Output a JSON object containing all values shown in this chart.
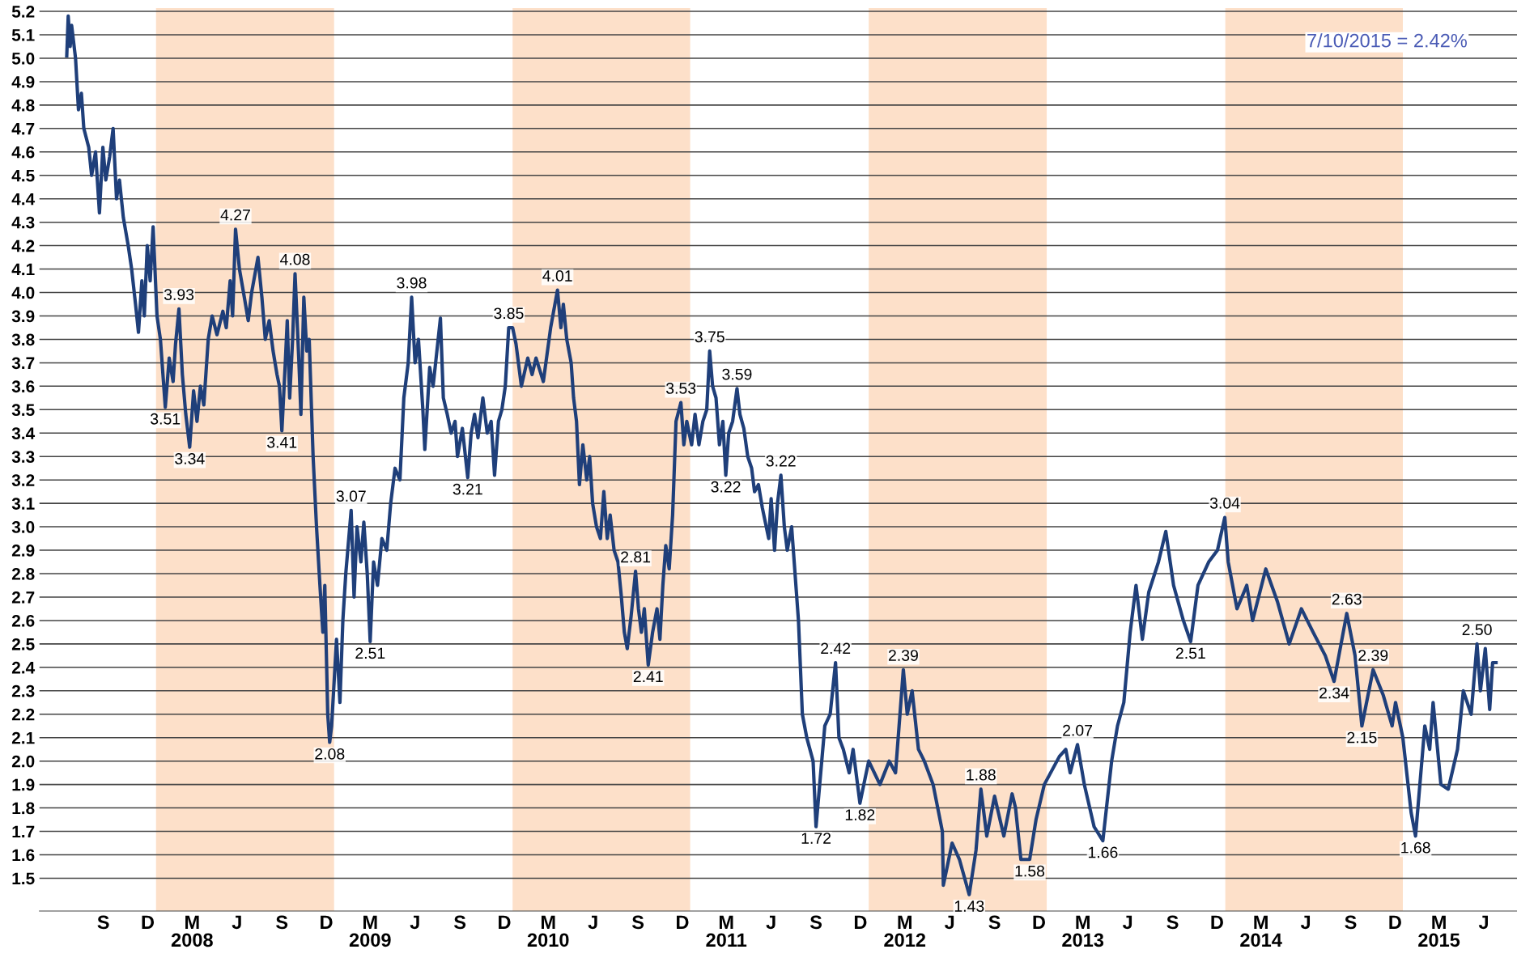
{
  "chart_data": {
    "type": "line",
    "x": [
      "2007-07-02",
      "2007-07-05",
      "2007-07-09",
      "2007-07-12",
      "2007-07-20",
      "2007-07-26",
      "2007-08-01",
      "2007-08-06",
      "2007-08-16",
      "2007-08-22",
      "2007-08-30",
      "2007-09-07",
      "2007-09-14",
      "2007-09-20",
      "2007-09-28",
      "2007-10-05",
      "2007-10-12",
      "2007-10-18",
      "2007-10-26",
      "2007-11-05",
      "2007-11-12",
      "2007-11-20",
      "2007-11-26",
      "2007-12-03",
      "2007-12-08",
      "2007-12-14",
      "2007-12-20",
      "2007-12-26",
      "2008-01-03",
      "2008-01-10",
      "2008-01-20",
      "2008-01-28",
      "2008-02-05",
      "2008-02-10",
      "2008-02-17",
      "2008-02-24",
      "2008-03-02",
      "2008-03-10",
      "2008-03-18",
      "2008-03-25",
      "2008-04-01",
      "2008-04-08",
      "2008-04-17",
      "2008-04-25",
      "2008-05-05",
      "2008-05-17",
      "2008-05-24",
      "2008-06-01",
      "2008-06-06",
      "2008-06-12",
      "2008-06-20",
      "2008-06-30",
      "2008-07-08",
      "2008-07-15",
      "2008-07-28",
      "2008-08-05",
      "2008-08-12",
      "2008-08-20",
      "2008-08-28",
      "2008-09-05",
      "2008-09-10",
      "2008-09-15",
      "2008-09-22",
      "2008-09-26",
      "2008-10-01",
      "2008-10-07",
      "2008-10-12",
      "2008-10-20",
      "2008-10-24",
      "2008-10-30",
      "2008-11-05",
      "2008-11-10",
      "2008-11-18",
      "2008-11-25",
      "2008-12-02",
      "2008-12-08",
      "2008-12-12",
      "2008-12-18",
      "2008-12-22",
      "2008-12-26",
      "2009-01-05",
      "2009-01-12",
      "2009-01-18",
      "2009-01-24",
      "2009-02-04",
      "2009-02-10",
      "2009-02-16",
      "2009-02-24",
      "2009-03-02",
      "2009-03-09",
      "2009-03-15",
      "2009-03-22",
      "2009-03-30",
      "2009-04-08",
      "2009-04-18",
      "2009-04-26",
      "2009-05-05",
      "2009-05-15",
      "2009-05-23",
      "2009-06-01",
      "2009-06-08",
      "2009-06-15",
      "2009-06-22",
      "2009-07-01",
      "2009-07-05",
      "2009-07-15",
      "2009-07-22",
      "2009-08-06",
      "2009-08-12",
      "2009-08-20",
      "2009-08-28",
      "2009-09-05",
      "2009-09-10",
      "2009-09-20",
      "2009-10-01",
      "2009-10-08",
      "2009-10-15",
      "2009-10-22",
      "2009-11-01",
      "2009-11-10",
      "2009-11-18",
      "2009-11-25",
      "2009-12-03",
      "2009-12-10",
      "2009-12-17",
      "2009-12-24",
      "2010-01-01",
      "2010-01-08",
      "2010-01-19",
      "2010-02-01",
      "2010-02-10",
      "2010-02-18",
      "2010-03-05",
      "2010-03-20",
      "2010-04-03",
      "2010-04-10",
      "2010-04-15",
      "2010-04-22",
      "2010-05-01",
      "2010-05-06",
      "2010-05-12",
      "2010-05-18",
      "2010-05-25",
      "2010-06-02",
      "2010-06-08",
      "2010-06-14",
      "2010-06-22",
      "2010-06-30",
      "2010-07-07",
      "2010-07-14",
      "2010-07-20",
      "2010-07-28",
      "2010-08-05",
      "2010-08-12",
      "2010-08-18",
      "2010-08-24",
      "2010-09-01",
      "2010-09-10",
      "2010-09-16",
      "2010-09-22",
      "2010-09-28",
      "2010-10-06",
      "2010-10-15",
      "2010-10-24",
      "2010-10-30",
      "2010-11-05",
      "2010-11-11",
      "2010-11-18",
      "2010-11-25",
      "2010-12-02",
      "2010-12-12",
      "2010-12-18",
      "2010-12-24",
      "2011-01-03",
      "2011-01-10",
      "2011-01-18",
      "2011-01-26",
      "2011-02-03",
      "2011-02-09",
      "2011-02-15",
      "2011-02-22",
      "2011-03-01",
      "2011-03-08",
      "2011-03-14",
      "2011-03-20",
      "2011-03-28",
      "2011-04-06",
      "2011-04-12",
      "2011-04-20",
      "2011-04-28",
      "2011-05-06",
      "2011-05-12",
      "2011-05-20",
      "2011-05-28",
      "2011-06-05",
      "2011-06-10",
      "2011-06-15",
      "2011-06-22",
      "2011-06-28",
      "2011-07-05",
      "2011-07-12",
      "2011-07-18",
      "2011-07-27",
      "2011-08-10",
      "2011-08-18",
      "2011-08-27",
      "2011-09-09",
      "2011-09-15",
      "2011-10-03",
      "2011-10-14",
      "2011-10-25",
      "2011-11-01",
      "2011-11-10",
      "2011-11-22",
      "2011-11-30",
      "2011-12-14",
      "2012-01-01",
      "2012-01-24",
      "2012-02-12",
      "2012-02-25",
      "2012-03-12",
      "2012-03-20",
      "2012-03-30",
      "2012-04-12",
      "2012-04-24",
      "2012-05-12",
      "2012-05-31",
      "2012-06-02",
      "2012-06-20",
      "2012-07-05",
      "2012-07-25",
      "2012-08-08",
      "2012-08-18",
      "2012-08-30",
      "2012-09-15",
      "2012-10-04",
      "2012-10-21",
      "2012-10-28",
      "2012-11-08",
      "2012-11-26",
      "2012-12-09",
      "2012-12-26",
      "2013-01-26",
      "2013-02-08",
      "2013-02-17",
      "2013-03-04",
      "2013-03-18",
      "2013-04-07",
      "2013-04-25",
      "2013-05-13",
      "2013-05-25",
      "2013-06-07",
      "2013-06-20",
      "2013-07-02",
      "2013-07-15",
      "2013-07-28",
      "2013-08-17",
      "2013-09-01",
      "2013-09-17",
      "2013-10-07",
      "2013-10-22",
      "2013-11-06",
      "2013-11-28",
      "2013-12-16",
      "2013-12-31",
      "2014-01-07",
      "2014-01-25",
      "2014-02-14",
      "2014-02-26",
      "2014-03-25",
      "2014-04-18",
      "2014-05-12",
      "2014-06-06",
      "2014-06-30",
      "2014-07-25",
      "2014-08-12",
      "2014-09-07",
      "2014-09-24",
      "2014-10-08",
      "2014-10-31",
      "2014-11-21",
      "2014-12-09",
      "2014-12-16",
      "2014-12-31",
      "2015-01-17",
      "2015-01-26",
      "2015-02-14",
      "2015-02-24",
      "2015-03-03",
      "2015-03-19",
      "2015-04-03",
      "2015-04-22",
      "2015-05-04",
      "2015-05-20",
      "2015-06-01",
      "2015-06-08",
      "2015-06-18",
      "2015-06-27",
      "2015-07-03",
      "2015-07-10"
    ],
    "series": [
      {
        "color": "#1f3f7a",
        "values": [
          5.01,
          5.18,
          5.05,
          5.14,
          5.0,
          4.78,
          4.85,
          4.7,
          4.62,
          4.5,
          4.6,
          4.34,
          4.62,
          4.48,
          4.58,
          4.7,
          4.4,
          4.48,
          4.32,
          4.2,
          4.1,
          3.95,
          3.83,
          4.05,
          3.9,
          4.2,
          4.05,
          4.28,
          3.9,
          3.8,
          3.51,
          3.72,
          3.62,
          3.78,
          3.93,
          3.65,
          3.48,
          3.34,
          3.58,
          3.45,
          3.6,
          3.52,
          3.8,
          3.9,
          3.82,
          3.92,
          3.85,
          4.05,
          3.9,
          4.27,
          4.1,
          3.98,
          3.88,
          4.0,
          4.15,
          3.98,
          3.8,
          3.88,
          3.75,
          3.65,
          3.6,
          3.41,
          3.7,
          3.88,
          3.55,
          3.8,
          4.08,
          3.7,
          3.48,
          3.98,
          3.75,
          3.8,
          3.3,
          3.0,
          2.75,
          2.55,
          2.75,
          2.2,
          2.08,
          2.15,
          2.52,
          2.25,
          2.6,
          2.8,
          3.07,
          2.7,
          3.0,
          2.85,
          3.02,
          2.8,
          2.51,
          2.85,
          2.75,
          2.95,
          2.9,
          3.1,
          3.25,
          3.2,
          3.55,
          3.7,
          3.98,
          3.7,
          3.8,
          3.5,
          3.33,
          3.68,
          3.6,
          3.89,
          3.55,
          3.48,
          3.4,
          3.45,
          3.3,
          3.42,
          3.21,
          3.4,
          3.48,
          3.38,
          3.55,
          3.4,
          3.45,
          3.22,
          3.45,
          3.5,
          3.6,
          3.85,
          3.85,
          3.78,
          3.6,
          3.72,
          3.65,
          3.72,
          3.62,
          3.85,
          4.01,
          3.85,
          3.95,
          3.8,
          3.7,
          3.55,
          3.45,
          3.18,
          3.35,
          3.2,
          3.3,
          3.1,
          3.0,
          2.95,
          3.15,
          2.95,
          3.05,
          2.9,
          2.85,
          2.7,
          2.55,
          2.48,
          2.62,
          2.81,
          2.65,
          2.55,
          2.65,
          2.41,
          2.55,
          2.65,
          2.52,
          2.75,
          2.92,
          2.82,
          3.05,
          3.45,
          3.53,
          3.35,
          3.45,
          3.35,
          3.48,
          3.35,
          3.45,
          3.5,
          3.75,
          3.6,
          3.55,
          3.35,
          3.45,
          3.22,
          3.4,
          3.45,
          3.59,
          3.48,
          3.42,
          3.3,
          3.25,
          3.15,
          3.18,
          3.08,
          3.0,
          2.95,
          3.12,
          2.9,
          3.1,
          3.22,
          3.0,
          2.9,
          3.0,
          2.6,
          2.2,
          2.1,
          2.0,
          1.72,
          2.15,
          2.2,
          2.42,
          2.1,
          2.05,
          1.95,
          2.05,
          1.82,
          2.0,
          1.9,
          2.0,
          1.95,
          2.39,
          2.2,
          2.3,
          2.05,
          2.0,
          1.9,
          1.7,
          1.47,
          1.65,
          1.58,
          1.43,
          1.62,
          1.88,
          1.68,
          1.85,
          1.68,
          1.86,
          1.8,
          1.58,
          1.58,
          1.75,
          1.9,
          2.02,
          2.05,
          1.95,
          2.07,
          1.9,
          1.72,
          1.66,
          2.0,
          2.15,
          2.25,
          2.55,
          2.75,
          2.52,
          2.72,
          2.85,
          2.98,
          2.75,
          2.6,
          2.51,
          2.75,
          2.85,
          2.9,
          3.04,
          2.85,
          2.65,
          2.75,
          2.6,
          2.82,
          2.68,
          2.5,
          2.65,
          2.55,
          2.45,
          2.34,
          2.63,
          2.45,
          2.15,
          2.39,
          2.28,
          2.15,
          2.25,
          2.1,
          1.78,
          1.68,
          2.15,
          2.05,
          2.25,
          1.9,
          1.88,
          2.05,
          2.3,
          2.2,
          2.5,
          2.3,
          2.48,
          2.22,
          2.42,
          2.42
        ]
      }
    ],
    "xlim": [
      "2007-05-07",
      "2015-08-22"
    ],
    "ylim": [
      1.36,
      5.214
    ],
    "yticks": [
      1.5,
      1.6,
      1.7,
      1.8,
      1.9,
      {
        "value": 2.0,
        "label": "2.0"
      },
      2.1,
      2.2,
      2.3,
      2.4,
      2.5,
      2.6,
      2.7,
      2.8,
      2.9,
      {
        "value": 3.0,
        "label": "3.0"
      },
      3.1,
      3.2,
      3.3,
      3.4,
      3.5,
      3.6,
      3.7,
      3.8,
      3.9,
      {
        "value": 4.0,
        "label": "4.0"
      },
      4.1,
      4.2,
      4.3,
      4.4,
      4.5,
      4.6,
      4.7,
      4.8,
      4.9,
      {
        "value": 5.0,
        "label": "5.0"
      },
      5.1,
      5.2
    ],
    "xticks": [
      {
        "value": "2007-09-15",
        "label": "S"
      },
      {
        "value": "2007-12-15",
        "label": "D"
      },
      {
        "value": "2008-03-15",
        "label": "M\n2008"
      },
      {
        "value": "2008-06-15",
        "label": "J"
      },
      {
        "value": "2008-09-15",
        "label": "S"
      },
      {
        "value": "2008-12-15",
        "label": "D"
      },
      {
        "value": "2009-03-15",
        "label": "M\n2009"
      },
      {
        "value": "2009-06-15",
        "label": "J"
      },
      {
        "value": "2009-09-15",
        "label": "S"
      },
      {
        "value": "2009-12-15",
        "label": "D"
      },
      {
        "value": "2010-03-15",
        "label": "M\n2010"
      },
      {
        "value": "2010-06-15",
        "label": "J"
      },
      {
        "value": "2010-09-15",
        "label": "S"
      },
      {
        "value": "2010-12-15",
        "label": "D"
      },
      {
        "value": "2011-03-15",
        "label": "M\n2011"
      },
      {
        "value": "2011-06-15",
        "label": "J"
      },
      {
        "value": "2011-09-15",
        "label": "S"
      },
      {
        "value": "2011-12-15",
        "label": "D"
      },
      {
        "value": "2012-03-15",
        "label": "M\n2012"
      },
      {
        "value": "2012-06-15",
        "label": "J"
      },
      {
        "value": "2012-09-15",
        "label": "S"
      },
      {
        "value": "2012-12-15",
        "label": "D"
      },
      {
        "value": "2013-03-15",
        "label": "M\n2013"
      },
      {
        "value": "2013-06-15",
        "label": "J"
      },
      {
        "value": "2013-09-15",
        "label": "S"
      },
      {
        "value": "2013-12-15",
        "label": "D"
      },
      {
        "value": "2014-03-15",
        "label": "M\n2014"
      },
      {
        "value": "2014-06-15",
        "label": "J"
      },
      {
        "value": "2014-09-15",
        "label": "S"
      },
      {
        "value": "2014-12-15",
        "label": "D"
      },
      {
        "value": "2015-03-15",
        "label": "M\n2015"
      },
      {
        "value": "2015-06-15",
        "label": "J"
      }
    ],
    "grid": "y",
    "bands": [
      {
        "axis": "x",
        "from": "2008-01-01",
        "to": "2008-12-31",
        "color": "#fde0c9"
      },
      {
        "axis": "x",
        "from": "2010-01-01",
        "to": "2010-12-31",
        "color": "#fde0c9"
      },
      {
        "axis": "x",
        "from": "2012-01-01",
        "to": "2012-12-31",
        "color": "#fde0c9"
      },
      {
        "axis": "x",
        "from": "2014-01-01",
        "to": "2014-12-31",
        "color": "#fde0c9"
      }
    ],
    "annotations": [
      "7/10/2015 = 2.42%",
      {
        "text": "4.27",
        "x": "2008-06-12",
        "y": 4.27
      },
      {
        "text": "3.93",
        "x": "2008-02-17",
        "y": 3.93
      },
      {
        "text": "3.51",
        "x": "2008-01-20",
        "y": 3.51
      },
      {
        "text": "3.34",
        "x": "2008-03-10",
        "y": 3.34
      },
      {
        "text": "4.08",
        "x": "2008-10-12",
        "y": 4.08
      },
      {
        "text": "3.41",
        "x": "2008-09-15",
        "y": 3.41
      },
      {
        "text": "2.08",
        "x": "2008-12-22",
        "y": 2.08
      },
      {
        "text": "3.07",
        "x": "2009-02-04",
        "y": 3.07
      },
      {
        "text": "2.51",
        "x": "2009-03-15",
        "y": 2.51
      },
      {
        "text": "3.98",
        "x": "2009-06-08",
        "y": 3.98
      },
      {
        "text": "3.21",
        "x": "2009-10-01",
        "y": 3.21
      },
      {
        "text": "3.85",
        "x": "2009-12-24",
        "y": 3.85
      },
      {
        "text": "4.01",
        "x": "2010-04-03",
        "y": 4.01
      },
      {
        "text": "2.81",
        "x": "2010-09-10",
        "y": 2.81
      },
      {
        "text": "2.41",
        "x": "2010-10-06",
        "y": 2.41
      },
      {
        "text": "3.53",
        "x": "2010-12-12",
        "y": 3.53
      },
      {
        "text": "3.75",
        "x": "2011-02-09",
        "y": 3.75
      },
      {
        "text": "3.22",
        "x": "2011-03-14",
        "y": 3.22
      },
      {
        "text": "3.59",
        "x": "2011-04-06",
        "y": 3.59
      },
      {
        "text": "3.22",
        "x": "2011-07-05",
        "y": 3.22
      },
      {
        "text": "1.72",
        "x": "2011-09-15",
        "y": 1.72
      },
      {
        "text": "2.42",
        "x": "2011-10-25",
        "y": 2.42
      },
      {
        "text": "1.82",
        "x": "2011-12-14",
        "y": 1.82
      },
      {
        "text": "2.39",
        "x": "2012-03-12",
        "y": 2.39
      },
      {
        "text": "1.43",
        "x": "2012-07-25",
        "y": 1.43
      },
      {
        "text": "1.88",
        "x": "2012-08-18",
        "y": 1.88
      },
      {
        "text": "1.58",
        "x": "2012-11-26",
        "y": 1.58
      },
      {
        "text": "2.07",
        "x": "2013-03-04",
        "y": 2.07
      },
      {
        "text": "1.66",
        "x": "2013-04-25",
        "y": 1.66
      },
      {
        "text": "2.51",
        "x": "2013-10-22",
        "y": 2.51
      },
      {
        "text": "3.04",
        "x": "2013-12-31",
        "y": 3.04
      },
      {
        "text": "2.63",
        "x": "2014-09-07",
        "y": 2.63
      },
      {
        "text": "2.34",
        "x": "2014-08-12",
        "y": 2.34
      },
      {
        "text": "2.39",
        "x": "2014-10-31",
        "y": 2.39
      },
      {
        "text": "2.15",
        "x": "2014-10-08",
        "y": 2.15
      },
      {
        "text": "1.68",
        "x": "2015-01-26",
        "y": 1.68
      },
      {
        "text": "2.50",
        "x": "2015-06-01",
        "y": 2.5
      }
    ]
  }
}
